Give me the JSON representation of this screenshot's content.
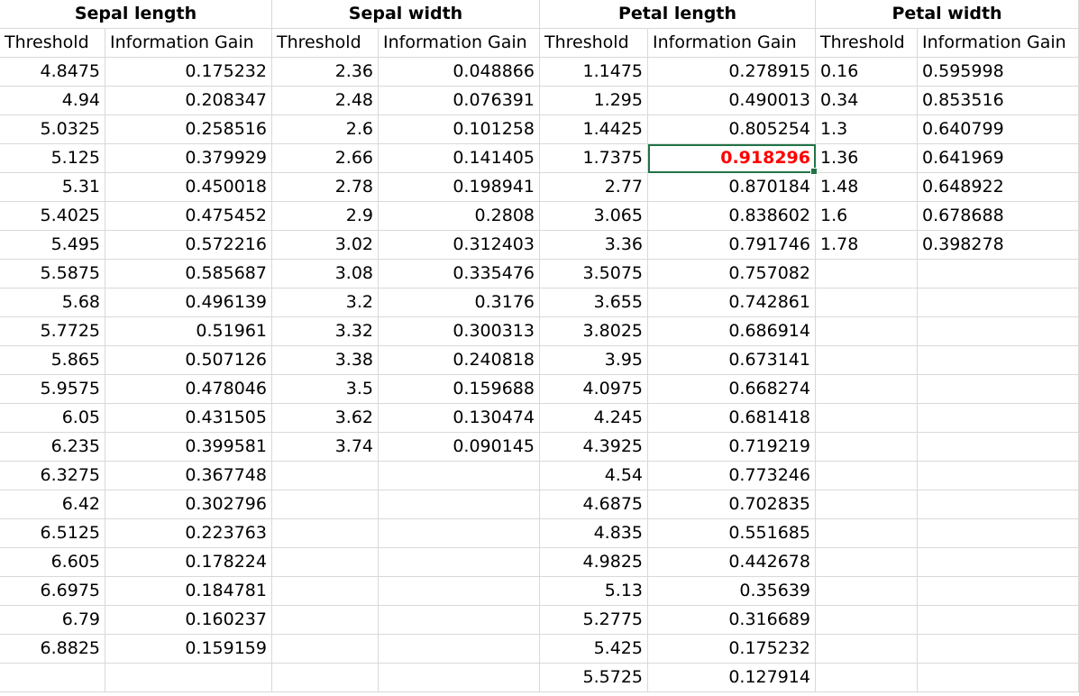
{
  "groups": [
    "Sepal length",
    "Sepal width",
    "Petal length",
    "Petal width"
  ],
  "subheaders": [
    "Threshold",
    "Information Gain",
    "Threshold",
    "Information Gain",
    "Threshold",
    "Information Gain",
    "Threshold",
    "Information Gain"
  ],
  "columns": [
    {
      "key": "sepal_length",
      "align_threshold": "right",
      "threshold": [
        "4.8475",
        "4.94",
        "5.0325",
        "5.125",
        "5.31",
        "5.4025",
        "5.495",
        "5.5875",
        "5.68",
        "5.7725",
        "5.865",
        "5.9575",
        "6.05",
        "6.235",
        "6.3275",
        "6.42",
        "6.5125",
        "6.605",
        "6.6975",
        "6.79",
        "6.8825"
      ],
      "gain": [
        "0.175232",
        "0.208347",
        "0.258516",
        "0.379929",
        "0.450018",
        "0.475452",
        "0.572216",
        "0.585687",
        "0.496139",
        "0.51961",
        "0.507126",
        "0.478046",
        "0.431505",
        "0.399581",
        "0.367748",
        "0.302796",
        "0.223763",
        "0.178224",
        "0.184781",
        "0.160237",
        "0.159159"
      ]
    },
    {
      "key": "sepal_width",
      "align_threshold": "right",
      "threshold": [
        "2.36",
        "2.48",
        "2.6",
        "2.66",
        "2.78",
        "2.9",
        "3.02",
        "3.08",
        "3.2",
        "3.32",
        "3.38",
        "3.5",
        "3.62",
        "3.74"
      ],
      "gain": [
        "0.048866",
        "0.076391",
        "0.101258",
        "0.141405",
        "0.198941",
        "0.2808",
        "0.312403",
        "0.335476",
        "0.3176",
        "0.300313",
        "0.240818",
        "0.159688",
        "0.130474",
        "0.090145"
      ]
    },
    {
      "key": "petal_length",
      "align_threshold": "right",
      "threshold": [
        "1.1475",
        "1.295",
        "1.4425",
        "1.7375",
        "2.77",
        "3.065",
        "3.36",
        "3.5075",
        "3.655",
        "3.8025",
        "3.95",
        "4.0975",
        "4.245",
        "4.3925",
        "4.54",
        "4.6875",
        "4.835",
        "4.9825",
        "5.13",
        "5.2775",
        "5.425",
        "5.5725"
      ],
      "gain": [
        "0.278915",
        "0.490013",
        "0.805254",
        "0.918296",
        "0.870184",
        "0.838602",
        "0.791746",
        "0.757082",
        "0.742861",
        "0.686914",
        "0.673141",
        "0.668274",
        "0.681418",
        "0.719219",
        "0.773246",
        "0.702835",
        "0.551685",
        "0.442678",
        "0.35639",
        "0.316689",
        "0.175232",
        "0.127914"
      ]
    },
    {
      "key": "petal_width",
      "align_threshold": "left",
      "align_gain": "left",
      "threshold": [
        "0.16",
        "0.34",
        "1.3",
        "1.36",
        "1.48",
        "1.6",
        "1.78"
      ],
      "gain": [
        "0.595998",
        "0.853516",
        "0.640799",
        "0.641969",
        "0.648922",
        "0.678688",
        "0.398278"
      ]
    }
  ],
  "selected_cell": {
    "column": 2,
    "row": 3,
    "value": "0.918296"
  },
  "colors": {
    "grid": "#d9d9d9",
    "selection": "#217346",
    "highlight_text": "#ff0000"
  },
  "total_data_rows": 22
}
